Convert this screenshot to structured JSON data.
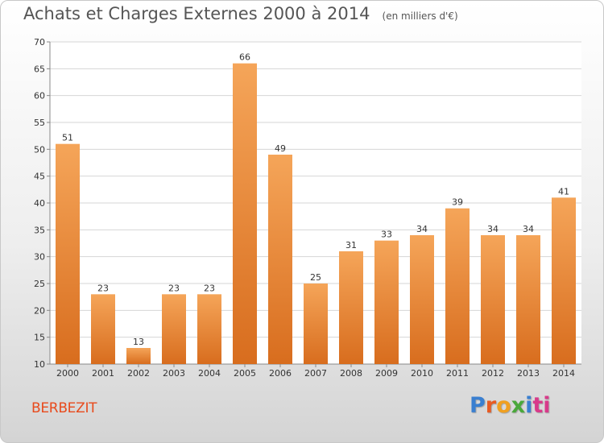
{
  "chart_data": {
    "type": "bar",
    "title": "Achats et Charges Externes 2000 à 2014",
    "subtitle": "(en milliers d'€)",
    "categories": [
      "2000",
      "2001",
      "2002",
      "2003",
      "2004",
      "2005",
      "2006",
      "2007",
      "2008",
      "2009",
      "2010",
      "2011",
      "2012",
      "2013",
      "2014"
    ],
    "values": [
      51,
      23,
      13,
      23,
      23,
      66,
      49,
      25,
      31,
      33,
      34,
      39,
      34,
      34,
      41
    ],
    "ylim": [
      10,
      70
    ],
    "yticks": [
      10,
      15,
      20,
      25,
      30,
      35,
      40,
      45,
      50,
      55,
      60,
      65,
      70
    ],
    "grid": true,
    "bar_color_top": "#f5a559",
    "bar_color_bottom": "#d86d1e"
  },
  "footer": {
    "commune": "BERBEZIT",
    "logo_letters": [
      "P",
      "r",
      "o",
      "x",
      "i",
      "ti"
    ]
  },
  "colors": {
    "title": "#555555",
    "commune": "#e84a1c",
    "grid": "#d6d6d6"
  }
}
